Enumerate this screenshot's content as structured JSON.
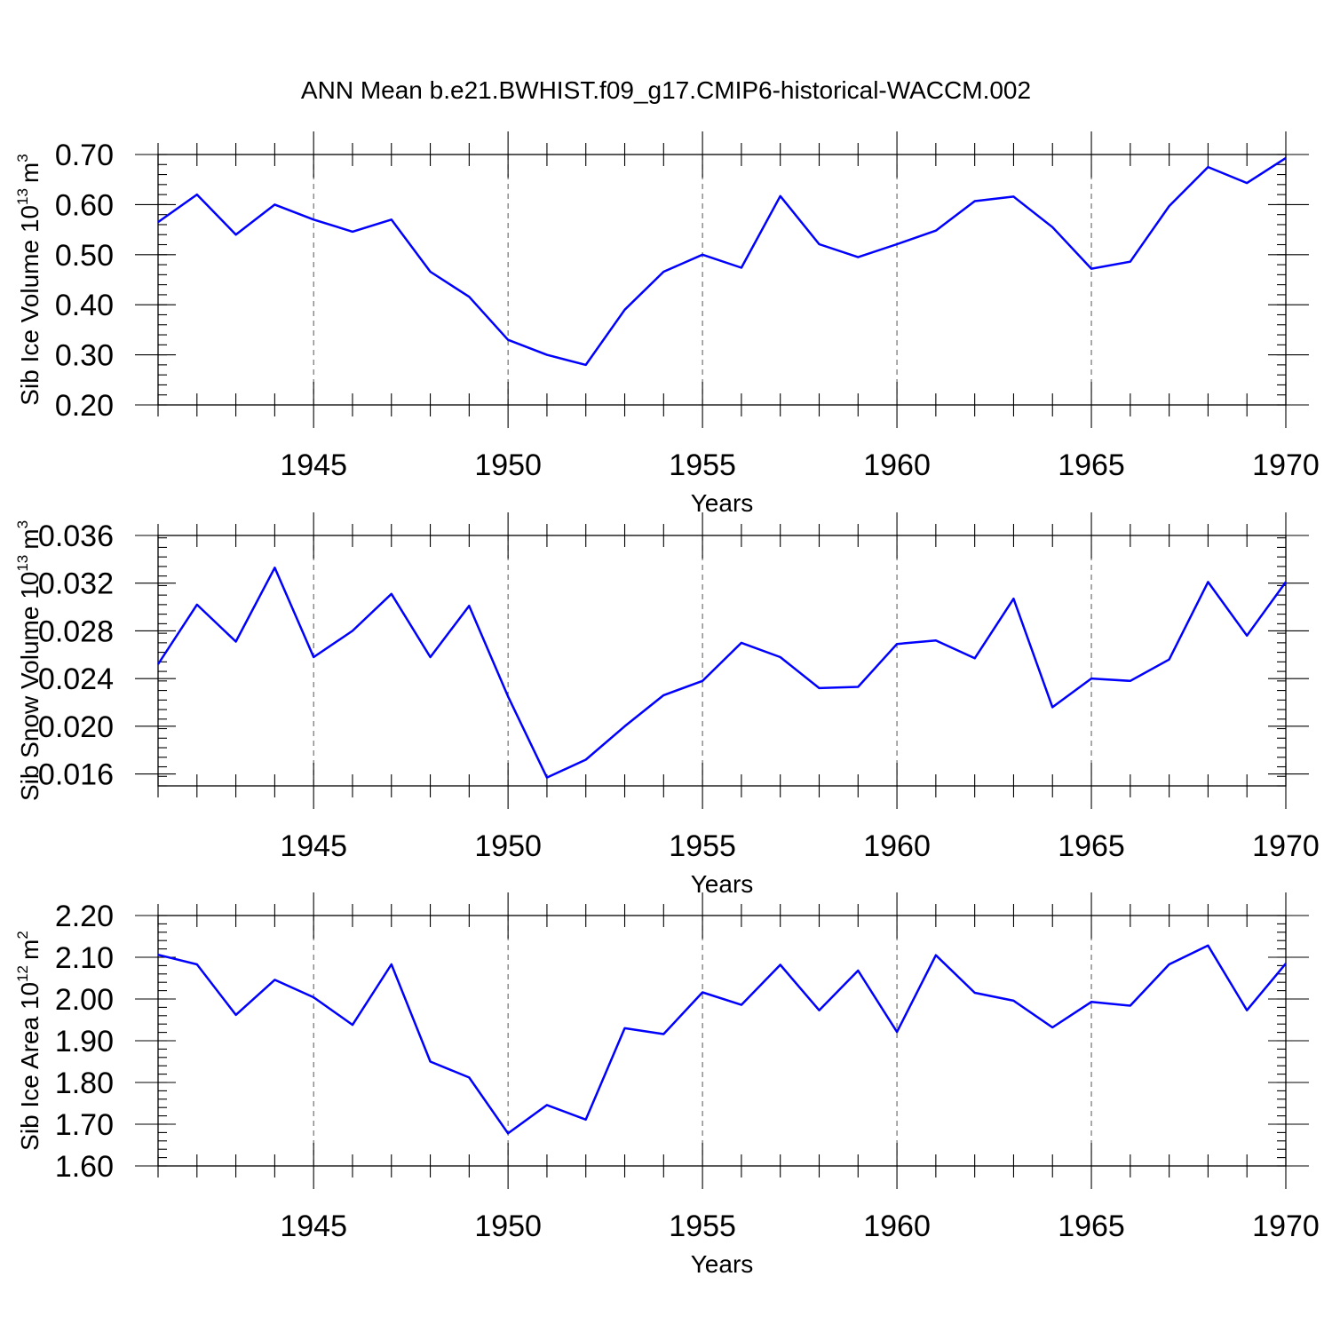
{
  "title": "ANN Mean b.e21.BWHIST.f09_g17.CMIP6-historical-WACCM.002",
  "colors": {
    "line": "#0000ff",
    "grid": "#555555",
    "frame": "#000000"
  },
  "chart_data": [
    {
      "type": "line",
      "xlabel": "Years",
      "ylabel": {
        "text": "Sib Ice Volume 10",
        "sup": "13",
        "unit": "m",
        "unit_sup": "3"
      },
      "xlim": [
        1941,
        1970
      ],
      "ylim": [
        0.2,
        0.7
      ],
      "x_ticks": [
        "1945",
        "1950",
        "1955",
        "1960",
        "1965",
        "1970"
      ],
      "y_ticks": [
        "0.20",
        "0.30",
        "0.40",
        "0.50",
        "0.60",
        "0.70"
      ],
      "grid": "vertical dashed at major x ticks",
      "x": [
        1941,
        1942,
        1943,
        1944,
        1945,
        1946,
        1947,
        1948,
        1949,
        1950,
        1951,
        1952,
        1953,
        1954,
        1955,
        1956,
        1957,
        1958,
        1959,
        1960,
        1961,
        1962,
        1963,
        1964,
        1965,
        1966,
        1967,
        1968,
        1969,
        1970
      ],
      "values": [
        0.565,
        0.62,
        0.54,
        0.6,
        0.57,
        0.546,
        0.57,
        0.466,
        0.416,
        0.33,
        0.3,
        0.28,
        0.39,
        0.466,
        0.5,
        0.474,
        0.617,
        0.521,
        0.495,
        0.521,
        0.548,
        0.607,
        0.616,
        0.555,
        0.472,
        0.486,
        0.597,
        0.675,
        0.643,
        0.693
      ]
    },
    {
      "type": "line",
      "xlabel": "Years",
      "ylabel": {
        "text": "Sib Snow Volume 10",
        "sup": "13",
        "unit": "m",
        "unit_sup": "3"
      },
      "xlim": [
        1941,
        1970
      ],
      "ylim": [
        0.015,
        0.036
      ],
      "x_ticks": [
        "1945",
        "1950",
        "1955",
        "1960",
        "1965",
        "1970"
      ],
      "y_ticks": [
        "0.016",
        "0.020",
        "0.024",
        "0.028",
        "0.032",
        "0.036"
      ],
      "grid": "vertical dashed at major x ticks",
      "x": [
        1941,
        1942,
        1943,
        1944,
        1945,
        1946,
        1947,
        1948,
        1949,
        1950,
        1951,
        1952,
        1953,
        1954,
        1955,
        1956,
        1957,
        1958,
        1959,
        1960,
        1961,
        1962,
        1963,
        1964,
        1965,
        1966,
        1967,
        1968,
        1969,
        1970
      ],
      "values": [
        0.0252,
        0.0302,
        0.0271,
        0.0333,
        0.0258,
        0.028,
        0.0311,
        0.0258,
        0.0301,
        0.0225,
        0.0157,
        0.0172,
        0.02,
        0.0226,
        0.0238,
        0.027,
        0.0258,
        0.0232,
        0.0233,
        0.0269,
        0.0272,
        0.0257,
        0.0307,
        0.0216,
        0.024,
        0.0238,
        0.0256,
        0.0321,
        0.0276,
        0.0321
      ]
    },
    {
      "type": "line",
      "xlabel": "Years",
      "ylabel": {
        "text": "Sib Ice Area 10",
        "sup": "12",
        "unit": "m",
        "unit_sup": "2"
      },
      "xlim": [
        1941,
        1970
      ],
      "ylim": [
        1.6,
        2.2
      ],
      "x_ticks": [
        "1945",
        "1950",
        "1955",
        "1960",
        "1965",
        "1970"
      ],
      "y_ticks": [
        "1.60",
        "1.70",
        "1.80",
        "1.90",
        "2.00",
        "2.10",
        "2.20"
      ],
      "grid": "vertical dashed at major x ticks",
      "x": [
        1941,
        1942,
        1943,
        1944,
        1945,
        1946,
        1947,
        1948,
        1949,
        1950,
        1951,
        1952,
        1953,
        1954,
        1955,
        1956,
        1957,
        1958,
        1959,
        1960,
        1961,
        1962,
        1963,
        1964,
        1965,
        1966,
        1967,
        1968,
        1969,
        1970
      ],
      "values": [
        2.106,
        2.083,
        1.962,
        2.046,
        2.004,
        1.938,
        2.083,
        1.85,
        1.812,
        1.678,
        1.746,
        1.711,
        1.93,
        1.916,
        2.016,
        1.986,
        2.082,
        1.973,
        2.068,
        1.921,
        2.105,
        2.015,
        1.996,
        1.932,
        1.993,
        1.984,
        2.083,
        2.128,
        1.973,
        2.085
      ]
    }
  ]
}
